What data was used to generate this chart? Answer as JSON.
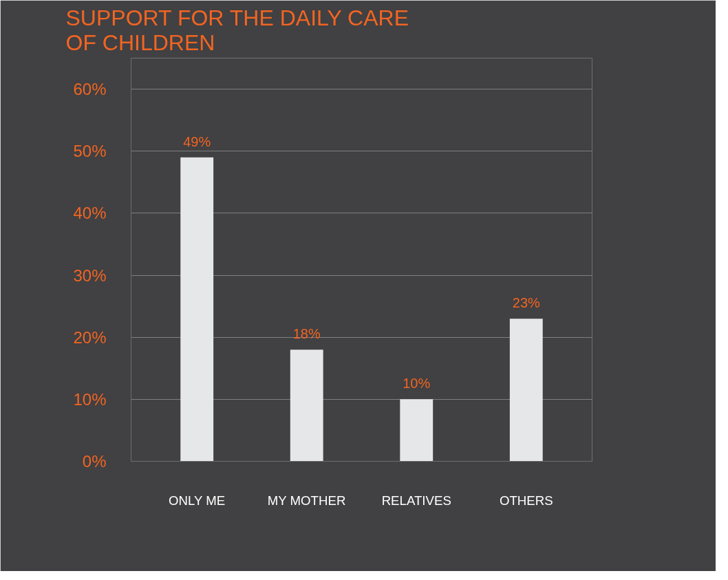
{
  "chart_data": {
    "type": "bar",
    "title": "SUPPORT FOR THE DAILY CARE OF CHILDREN",
    "categories": [
      "ONLY ME",
      "MY MOTHER",
      "RELATIVES",
      "OTHERS"
    ],
    "values": [
      49,
      18,
      10,
      23
    ],
    "color": "#e6e7e8",
    "ylim": [
      0,
      65
    ],
    "yticks": [
      {
        "value": 0,
        "label": "0%"
      },
      {
        "value": 10,
        "label": "10%"
      },
      {
        "value": 20,
        "label": "20%"
      },
      {
        "value": 30,
        "label": "30%"
      },
      {
        "value": 40,
        "label": "40%"
      },
      {
        "value": 50,
        "label": "50%"
      },
      {
        "value": 60,
        "label": "60%"
      }
    ],
    "value_labels": [
      "49%",
      "18%",
      "10%",
      "23%"
    ],
    "grid": "y"
  }
}
